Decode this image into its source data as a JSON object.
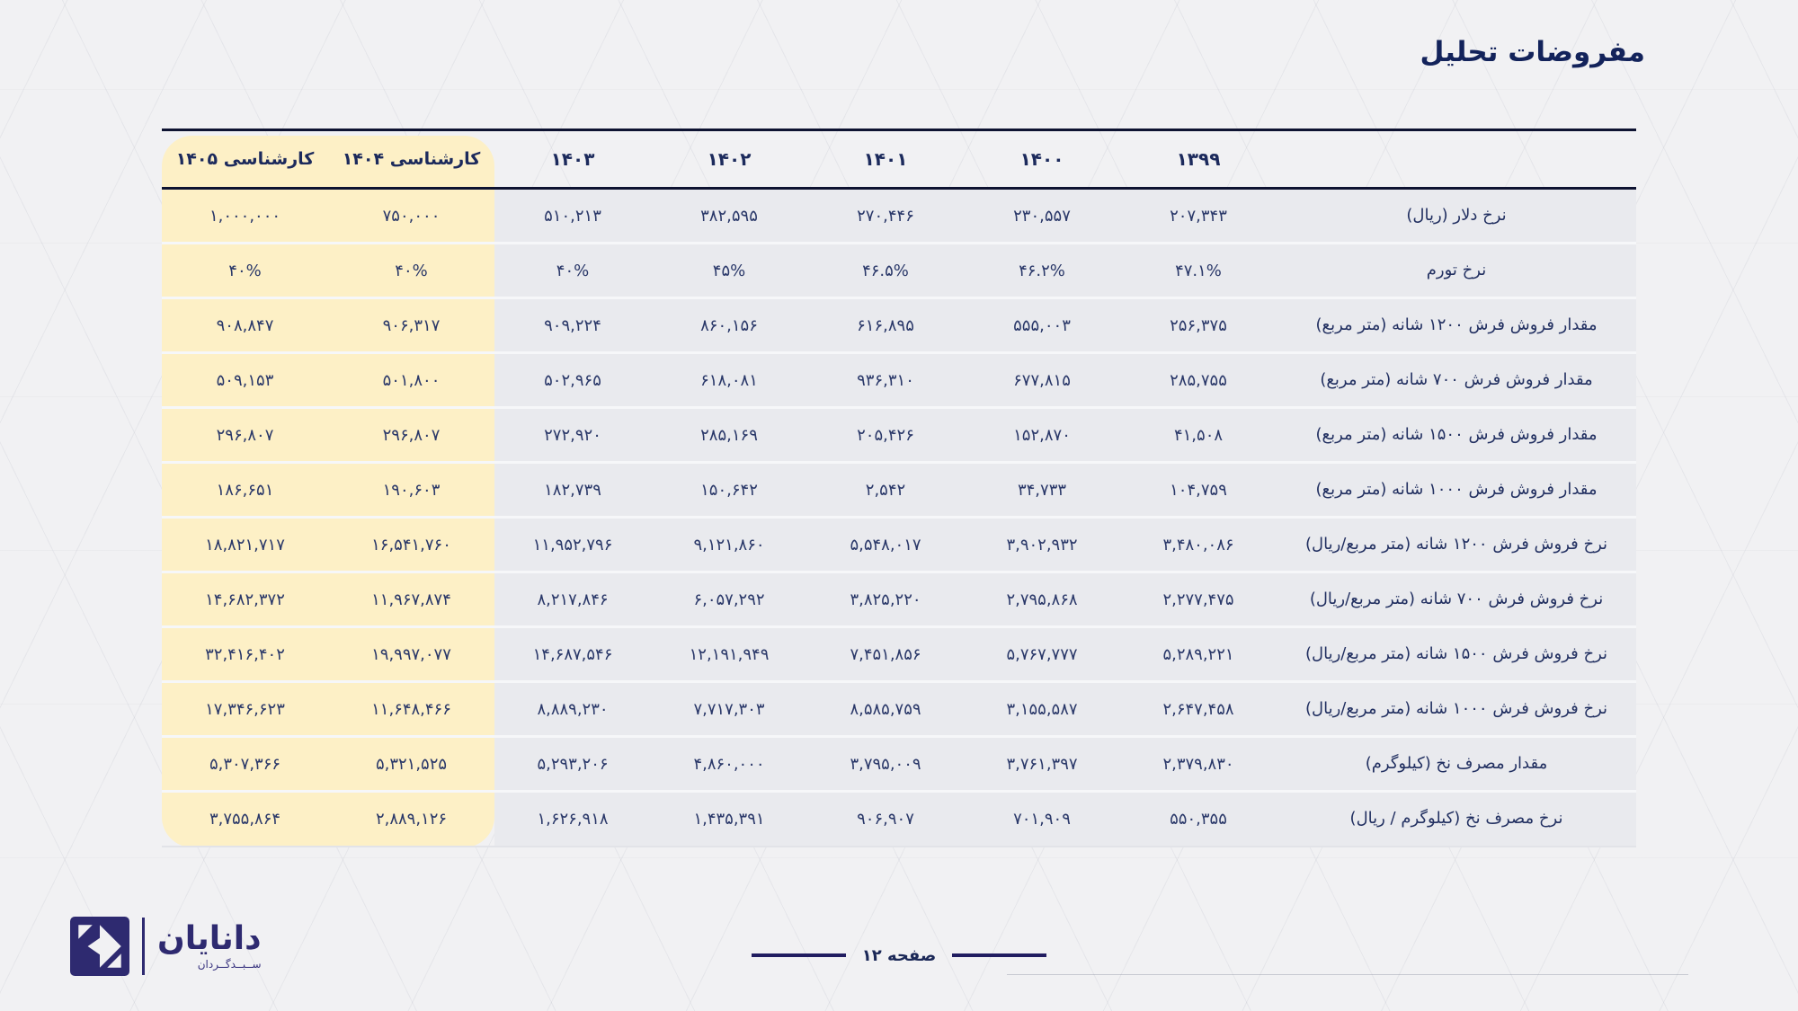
{
  "page": {
    "title": "مفروضات تحلیل"
  },
  "colors": {
    "background": "#f1f1f3",
    "navy_text": "#13235b",
    "table_rule": "#0e1331",
    "row_background": "#e9eaee",
    "forecast_highlight": "#fdf0c6",
    "brand_navy": "#2e2a70"
  },
  "chart_data": {
    "type": "table",
    "title": "مفروضات تحلیل",
    "direction": "rtl",
    "columns": [
      "",
      "۱۳۹۹",
      "۱۴۰۰",
      "۱۴۰۱",
      "۱۴۰۲",
      "۱۴۰۳",
      "کارشناسی ۱۴۰۴",
      "کارشناسی ۱۴۰۵"
    ],
    "highlighted_columns": [
      "کارشناسی ۱۴۰۴",
      "کارشناسی ۱۴۰۵"
    ],
    "rows": [
      {
        "label": "نرخ دلار (ریال)",
        "values": [
          "۲۰۷,۳۴۳",
          "۲۳۰,۵۵۷",
          "۲۷۰,۴۴۶",
          "۳۸۲,۵۹۵",
          "۵۱۰,۲۱۳",
          "۷۵۰,۰۰۰",
          "۱,۰۰۰,۰۰۰"
        ]
      },
      {
        "label": "نرخ تورم",
        "values": [
          "۴۷.۱%",
          "۴۶.۲%",
          "۴۶.۵%",
          "۴۵%",
          "۴۰%",
          "۴۰%",
          "۴۰%"
        ]
      },
      {
        "label": "مقدار فروش فرش ۱۲۰۰ شانه (متر مربع)",
        "values": [
          "۲۵۶,۳۷۵",
          "۵۵۵,۰۰۳",
          "۶۱۶,۸۹۵",
          "۸۶۰,۱۵۶",
          "۹۰۹,۲۲۴",
          "۹۰۶,۳۱۷",
          "۹۰۸,۸۴۷"
        ]
      },
      {
        "label": "مقدار فروش فرش ۷۰۰ شانه (متر مربع)",
        "values": [
          "۲۸۵,۷۵۵",
          "۶۷۷,۸۱۵",
          "۹۳۶,۳۱۰",
          "۶۱۸,۰۸۱",
          "۵۰۲,۹۶۵",
          "۵۰۱,۸۰۰",
          "۵۰۹,۱۵۳"
        ]
      },
      {
        "label": "مقدار فروش  فرش ۱۵۰۰ شانه (متر مربع)",
        "values": [
          "۴۱,۵۰۸",
          "۱۵۲,۸۷۰",
          "۲۰۵,۴۲۶",
          "۲۸۵,۱۶۹",
          "۲۷۲,۹۲۰",
          "۲۹۶,۸۰۷",
          "۲۹۶,۸۰۷"
        ]
      },
      {
        "label": "مقدار فروش  فرش ۱۰۰۰ شانه (متر مربع)",
        "values": [
          "۱۰۴,۷۵۹",
          "۳۴,۷۳۳",
          "۲,۵۴۲",
          "۱۵۰,۶۴۲",
          "۱۸۲,۷۳۹",
          "۱۹۰,۶۰۳",
          "۱۸۶,۶۵۱"
        ]
      },
      {
        "label": "نرخ فروش فرش ۱۲۰۰ شانه (متر مربع/ریال)",
        "values": [
          "۳,۴۸۰,۰۸۶",
          "۳,۹۰۲,۹۳۲",
          "۵,۵۴۸,۰۱۷",
          "۹,۱۲۱,۸۶۰",
          "۱۱,۹۵۲,۷۹۶",
          "۱۶,۵۴۱,۷۶۰",
          "۱۸,۸۲۱,۷۱۷"
        ]
      },
      {
        "label": "نرخ فروش فرش ۷۰۰ شانه (متر مربع/ریال)",
        "values": [
          "۲,۲۷۷,۴۷۵",
          "۲,۷۹۵,۸۶۸",
          "۳,۸۲۵,۲۲۰",
          "۶,۰۵۷,۲۹۲",
          "۸,۲۱۷,۸۴۶",
          "۱۱,۹۶۷,۸۷۴",
          "۱۴,۶۸۲,۳۷۲"
        ]
      },
      {
        "label": "نرخ فروش  فرش ۱۵۰۰ شانه (متر مربع/ریال)",
        "values": [
          "۵,۲۸۹,۲۲۱",
          "۵,۷۶۷,۷۷۷",
          "۷,۴۵۱,۸۵۶",
          "۱۲,۱۹۱,۹۴۹",
          "۱۴,۶۸۷,۵۴۶",
          "۱۹,۹۹۷,۰۷۷",
          "۳۲,۴۱۶,۴۰۲"
        ]
      },
      {
        "label": "نرخ فروش فرش ۱۰۰۰ شانه (متر مربع/ریال)",
        "values": [
          "۲,۶۴۷,۴۵۸",
          "۳,۱۵۵,۵۸۷",
          "۸,۵۸۵,۷۵۹",
          "۷,۷۱۷,۳۰۳",
          "۸,۸۸۹,۲۳۰",
          "۱۱,۶۴۸,۴۶۶",
          "۱۷,۳۴۶,۶۲۳"
        ]
      },
      {
        "label": "مقدار مصرف نخ  (کیلوگرم)",
        "values": [
          "۲,۳۷۹,۸۳۰",
          "۳,۷۶۱,۳۹۷",
          "۳,۷۹۵,۰۰۹",
          "۴,۸۶۰,۰۰۰",
          "۵,۲۹۳,۲۰۶",
          "۵,۳۲۱,۵۲۵",
          "۵,۳۰۷,۳۶۶"
        ]
      },
      {
        "label": "نرخ مصرف نخ (کیلوگرم / ریال)",
        "values": [
          "۵۵۰,۳۵۵",
          "۷۰۱,۹۰۹",
          "۹۰۶,۹۰۷",
          "۱,۴۳۵,۳۹۱",
          "۱,۶۲۶,۹۱۸",
          "۲,۸۸۹,۱۲۶",
          "۳,۷۵۵,۸۶۴"
        ]
      }
    ]
  },
  "footer": {
    "brand": "دانایان",
    "sub_brand": "ســبــدگــردان",
    "page_label": "صفحه ۱۲"
  }
}
